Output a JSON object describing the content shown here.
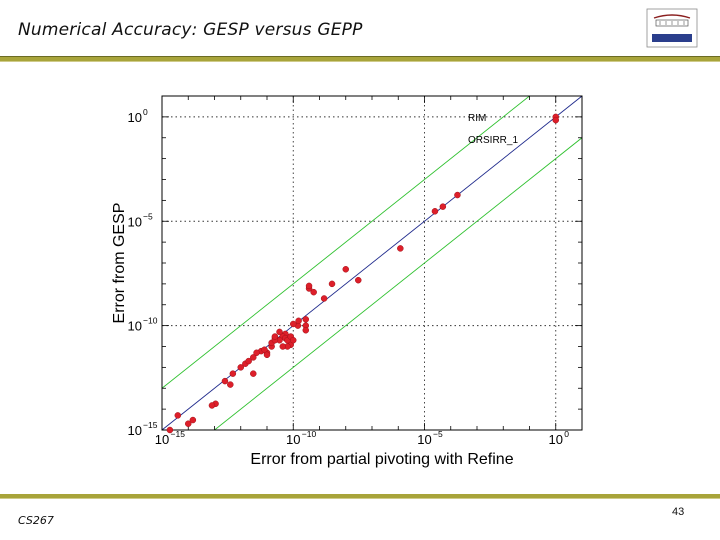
{
  "slide": {
    "title": "Numerical Accuracy: GESP versus GEPP",
    "footer_course": "CS267",
    "page_number": "43"
  },
  "colors": {
    "accent_bar": "#a8a43a",
    "points": "#dd1f2a",
    "diagonal": "#1f2a8c",
    "bounds": "#2fc12f"
  },
  "chart_data": {
    "type": "scatter",
    "title": "",
    "xlabel": "Error from partial pivoting with Refine",
    "ylabel": "Error from GESP",
    "x_scale": "log",
    "y_scale": "log",
    "xlim": [
      1e-15,
      10
    ],
    "ylim": [
      1e-15,
      10
    ],
    "x_ticks": [
      {
        "value": 1e-15,
        "base": "10",
        "exp": "−15"
      },
      {
        "value": 1e-10,
        "base": "10",
        "exp": "−10"
      },
      {
        "value": 1e-05,
        "base": "10",
        "exp": "−5"
      },
      {
        "value": 1,
        "base": "10",
        "exp": "0"
      }
    ],
    "y_ticks": [
      {
        "value": 1e-15,
        "base": "10",
        "exp": "−15"
      },
      {
        "value": 1e-10,
        "base": "10",
        "exp": "−10"
      },
      {
        "value": 1e-05,
        "base": "10",
        "exp": "−5"
      },
      {
        "value": 1,
        "base": "10",
        "exp": "0"
      }
    ],
    "grid": true,
    "annotations": [
      "RIM",
      "ORSIRR_1"
    ],
    "reference_lines": [
      {
        "kind": "diagonal",
        "y_over_x": 1
      },
      {
        "kind": "upper-bound",
        "y_over_x": 100
      },
      {
        "kind": "lower-bound",
        "y_over_x": 0.01
      }
    ],
    "series": [
      {
        "points": [
          [
            1.0,
            1.0
          ],
          [
            1.0,
            0.7
          ],
          [
            0.00018,
            0.00018
          ],
          [
            5e-05,
            5e-05
          ],
          [
            2.5e-05,
            3e-05
          ],
          [
            1.2e-06,
            5e-07
          ],
          [
            3e-08,
            1.5e-08
          ],
          [
            1e-08,
            5e-08
          ],
          [
            3e-09,
            1e-08
          ],
          [
            1.5e-09,
            2e-09
          ],
          [
            4e-10,
            6e-09
          ],
          [
            4e-10,
            8e-09
          ],
          [
            6e-10,
            4e-09
          ],
          [
            3e-10,
            2e-10
          ],
          [
            3e-10,
            1e-10
          ],
          [
            3e-10,
            6e-11
          ],
          [
            5e-11,
            4e-11
          ],
          [
            1.5e-10,
            1e-10
          ],
          [
            1.6e-10,
            1.7e-10
          ],
          [
            1e-10,
            1.2e-10
          ],
          [
            8e-11,
            1.2e-11
          ],
          [
            6e-11,
            1e-11
          ],
          [
            4e-11,
            3e-11
          ],
          [
            3e-11,
            2e-11
          ],
          [
            2e-11,
            2.5e-11
          ],
          [
            1.5e-11,
            1e-11
          ],
          [
            1e-11,
            5e-12
          ],
          [
            1.5e-11,
            1.5e-11
          ],
          [
            2e-11,
            2e-11
          ],
          [
            5e-11,
            2.5e-11
          ],
          [
            3e-11,
            5e-11
          ],
          [
            2e-11,
            3e-11
          ],
          [
            4e-11,
            1e-11
          ],
          [
            6e-11,
            2e-11
          ],
          [
            8e-11,
            3e-11
          ],
          [
            1e-10,
            2e-11
          ],
          [
            1e-12,
            1e-12
          ],
          [
            1.5e-12,
            1.5e-12
          ],
          [
            2e-12,
            2e-12
          ],
          [
            3e-12,
            3e-12
          ],
          [
            6e-12,
            6e-12
          ],
          [
            8e-12,
            7e-12
          ],
          [
            4e-12,
            5e-12
          ],
          [
            1e-11,
            4e-12
          ],
          [
            5e-13,
            5e-13
          ],
          [
            3e-12,
            5e-13
          ],
          [
            4e-13,
            1.5e-13
          ],
          [
            2.5e-13,
            2.2e-13
          ],
          [
            1.1e-13,
            1.8e-14
          ],
          [
            8e-14,
            1.5e-14
          ],
          [
            1.5e-14,
            3e-15
          ],
          [
            1e-14,
            2e-15
          ],
          [
            2e-15,
            1e-15
          ],
          [
            4e-15,
            5e-15
          ]
        ]
      }
    ]
  }
}
